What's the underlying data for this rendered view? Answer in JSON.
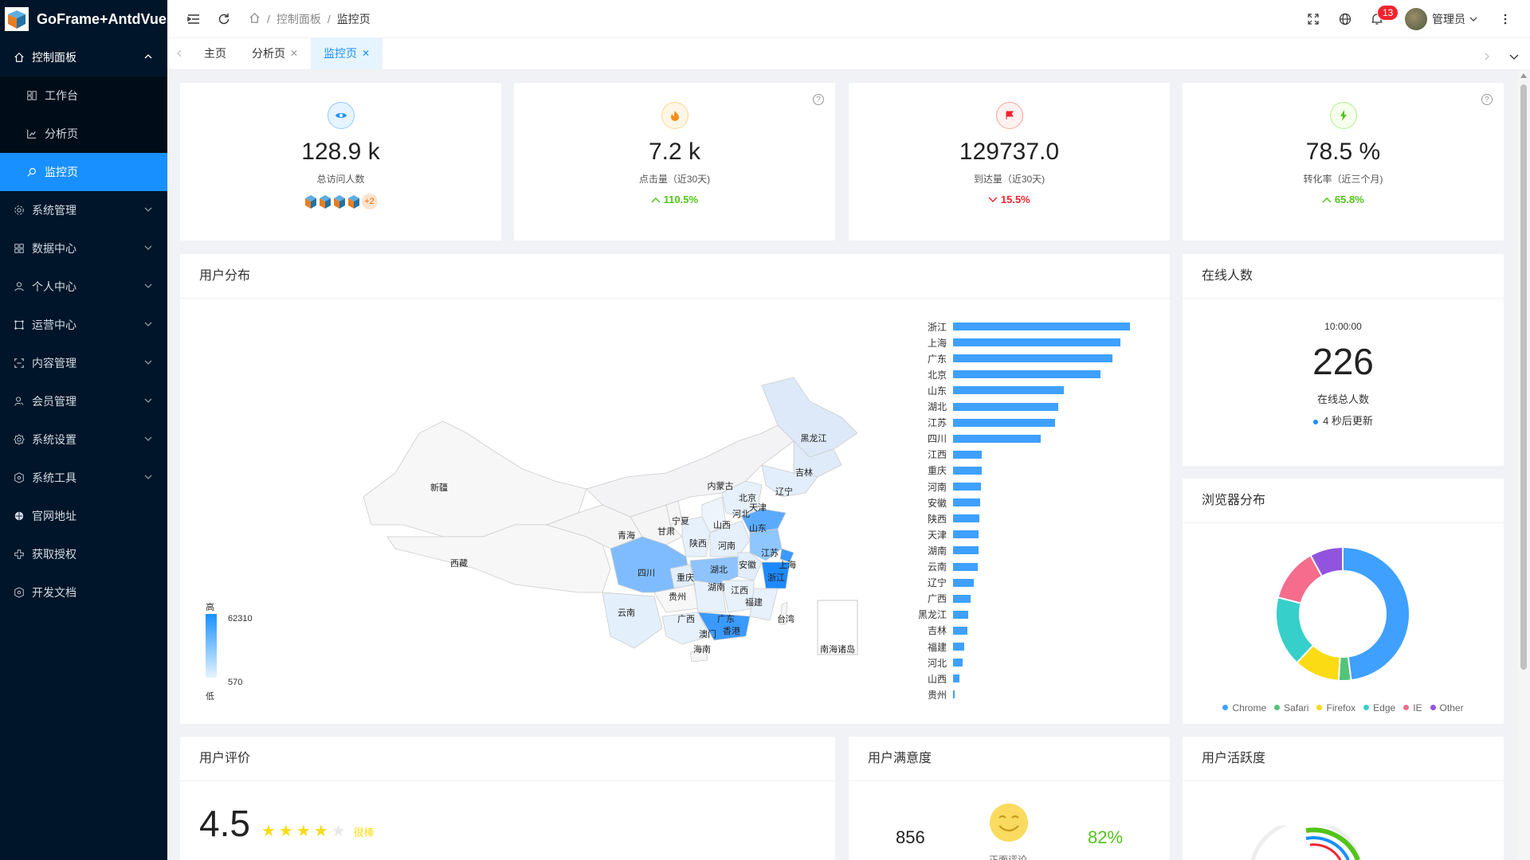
{
  "app": {
    "title": "GoFrame+AntdVue"
  },
  "sidebar": {
    "items": [
      {
        "label": "控制面板",
        "icon": "home-icon",
        "open": true
      },
      {
        "label": "工作台",
        "icon": "workbench-icon",
        "sub": true
      },
      {
        "label": "分析页",
        "icon": "analysis-icon",
        "sub": true
      },
      {
        "label": "监控页",
        "icon": "monitor-icon",
        "sub": true,
        "active": true
      },
      {
        "label": "系统管理",
        "icon": "gear-icon"
      },
      {
        "label": "数据中心",
        "icon": "grid-icon"
      },
      {
        "label": "个人中心",
        "icon": "user-icon"
      },
      {
        "label": "运营中心",
        "icon": "operation-icon"
      },
      {
        "label": "内容管理",
        "icon": "content-icon"
      },
      {
        "label": "会员管理",
        "icon": "member-icon"
      },
      {
        "label": "系统设置",
        "icon": "settings-icon"
      },
      {
        "label": "系统工具",
        "icon": "tools-icon"
      },
      {
        "label": "官网地址",
        "icon": "globe-icon"
      },
      {
        "label": "获取授权",
        "icon": "auth-icon"
      },
      {
        "label": "开发文档",
        "icon": "docs-icon"
      }
    ]
  },
  "header": {
    "breadcrumb": [
      "控制面板",
      "监控页"
    ],
    "notification_count": "13",
    "user_name": "管理员"
  },
  "tabs": [
    {
      "label": "主页",
      "closable": false
    },
    {
      "label": "分析页",
      "closable": true
    },
    {
      "label": "监控页",
      "closable": true,
      "active": true
    }
  ],
  "stats": [
    {
      "value": "128.9 k",
      "label": "总访问人数",
      "color": "#1890ff",
      "icon": "eye-icon",
      "extra": "+2"
    },
    {
      "value": "7.2 k",
      "label": "点击量（近30天)",
      "color": "#fa8c16",
      "icon": "fire-icon",
      "trend": "110.5%",
      "trend_dir": "up"
    },
    {
      "value": "129737.0",
      "label": "到达量（近30天)",
      "color": "#f5222d",
      "icon": "flag-icon",
      "trend": "15.5%",
      "trend_dir": "down"
    },
    {
      "value": "78.5 %",
      "label": "转化率（近三个月)",
      "color": "#52c41a",
      "icon": "bolt-icon",
      "trend": "65.8%",
      "trend_dir": "up"
    }
  ],
  "user_distribution": {
    "title": "用户分布",
    "visual_map": {
      "high_label": "高",
      "low_label": "低",
      "max": "62310",
      "min": "570"
    },
    "provinces": [
      "黑龙江",
      "吉林",
      "辽宁",
      "内蒙古",
      "北京",
      "天津",
      "河北",
      "山西",
      "山东",
      "宁夏",
      "甘肃",
      "青海",
      "新疆",
      "西藏",
      "陕西",
      "河南",
      "江苏",
      "上海",
      "安徽",
      "湖北",
      "四川",
      "重庆",
      "浙江",
      "贵州",
      "湖南",
      "江西",
      "福建",
      "云南",
      "广西",
      "广东",
      "台湾",
      "澳门",
      "香港",
      "海南",
      "南海诸岛"
    ]
  },
  "chart_data": [
    {
      "type": "bar",
      "orientation": "horizontal",
      "categories": [
        "浙江",
        "上海",
        "广东",
        "北京",
        "山东",
        "湖北",
        "江苏",
        "四川",
        "江西",
        "重庆",
        "河南",
        "安徽",
        "陕西",
        "天津",
        "湖南",
        "云南",
        "辽宁",
        "广西",
        "黑龙江",
        "吉林",
        "福建",
        "河北",
        "山西",
        "贵州"
      ],
      "values": [
        62310,
        59000,
        56000,
        52000,
        39000,
        37000,
        36000,
        31000,
        10000,
        10000,
        9700,
        9500,
        9400,
        9000,
        9000,
        8800,
        7200,
        6300,
        5200,
        5100,
        3800,
        3500,
        2200,
        570
      ]
    },
    {
      "type": "pie",
      "title": "浏览器分布",
      "categories": [
        "Chrome",
        "Safari",
        "Firefox",
        "Edge",
        "IE",
        "Other"
      ],
      "values": [
        48,
        3,
        11,
        17,
        13,
        8
      ],
      "colors": [
        "#3fa0ff",
        "#52c47a",
        "#fadb14",
        "#36cfc9",
        "#f56c8c",
        "#9254de"
      ]
    }
  ],
  "online": {
    "title": "在线人数",
    "time": "10:00:00",
    "count": "226",
    "label": "在线总人数",
    "update": "4 秒后更新"
  },
  "browser": {
    "title": "浏览器分布"
  },
  "rating": {
    "title": "用户评价",
    "score": "4.5",
    "stars": 4,
    "text": "很棒"
  },
  "satisfaction": {
    "title": "用户满意度",
    "count": "856",
    "percent": "82%",
    "sub": "正面评论"
  },
  "activity": {
    "title": "用户活跃度"
  }
}
